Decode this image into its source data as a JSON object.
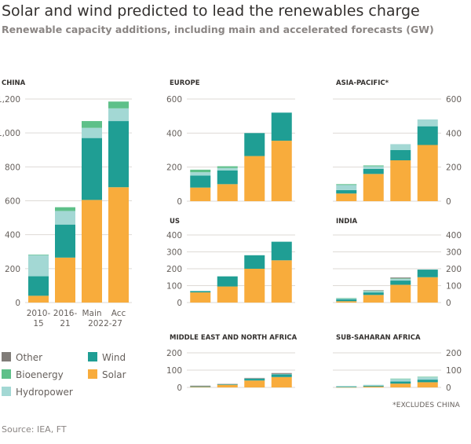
{
  "title": "Solar and wind predicted to lead the renewables charge",
  "subtitle": "Renewable capacity additions, including main and accelerated forecasts (GW)",
  "source": "Source: IEA, FT",
  "footnote": "*EXCLUDES CHINA",
  "colors": {
    "Solar": "#f8ac3c",
    "Wind": "#1f9e94",
    "Hydropower": "#a3d8d4",
    "Bioenergy": "#5ec089",
    "Other": "#807c78",
    "grid": "#dedad6",
    "axis": "#66605c"
  },
  "legend": [
    {
      "name": "Other",
      "color": "#807c78"
    },
    {
      "name": "Wind",
      "color": "#1f9e94"
    },
    {
      "name": "Bioenergy",
      "color": "#5ec089"
    },
    {
      "name": "Solar",
      "color": "#f8ac3c"
    },
    {
      "name": "Hydropower",
      "color": "#a3d8d4"
    }
  ],
  "chart_data": [
    {
      "type": "bar",
      "stacked": true,
      "title": "CHINA",
      "categories": [
        "2010-15",
        "2016-21",
        "Main",
        "Acc"
      ],
      "xlabels": [
        "2010-\n15",
        "2016-\n21",
        "Main",
        "Acc"
      ],
      "group_label": "2022-27",
      "ylim": [
        0,
        1200
      ],
      "yticks": [
        0,
        200,
        400,
        600,
        800,
        "1,000",
        "1,200"
      ],
      "yaxis_side": "left",
      "series": [
        {
          "name": "Solar",
          "values": [
            40,
            265,
            605,
            680
          ]
        },
        {
          "name": "Wind",
          "values": [
            115,
            195,
            365,
            390
          ]
        },
        {
          "name": "Hydropower",
          "values": [
            125,
            80,
            60,
            75
          ]
        },
        {
          "name": "Bioenergy",
          "values": [
            3,
            22,
            40,
            40
          ]
        },
        {
          "name": "Other",
          "values": [
            0,
            0,
            0,
            0
          ]
        }
      ]
    },
    {
      "type": "bar",
      "stacked": true,
      "title": "EUROPE",
      "categories": [
        "2010-15",
        "2016-21",
        "Main",
        "Acc"
      ],
      "ylim": [
        0,
        600
      ],
      "yticks": [
        0,
        200,
        400,
        600
      ],
      "yaxis_side": "left",
      "series": [
        {
          "name": "Solar",
          "values": [
            80,
            100,
            265,
            355
          ]
        },
        {
          "name": "Wind",
          "values": [
            70,
            80,
            135,
            165
          ]
        },
        {
          "name": "Hydropower",
          "values": [
            20,
            15,
            0,
            0
          ]
        },
        {
          "name": "Bioenergy",
          "values": [
            15,
            10,
            0,
            0
          ]
        },
        {
          "name": "Other",
          "values": [
            0,
            0,
            0,
            0
          ]
        }
      ]
    },
    {
      "type": "bar",
      "stacked": true,
      "title": "ASIA-PACIFIC*",
      "categories": [
        "2010-15",
        "2016-21",
        "Main",
        "Acc"
      ],
      "ylim": [
        0,
        600
      ],
      "yticks": [
        0,
        200,
        400,
        600
      ],
      "yaxis_side": "right",
      "series": [
        {
          "name": "Solar",
          "values": [
            45,
            160,
            240,
            330
          ]
        },
        {
          "name": "Wind",
          "values": [
            20,
            30,
            60,
            110
          ]
        },
        {
          "name": "Hydropower",
          "values": [
            30,
            15,
            35,
            40
          ]
        },
        {
          "name": "Bioenergy",
          "values": [
            5,
            5,
            0,
            0
          ]
        },
        {
          "name": "Other",
          "values": [
            0,
            0,
            0,
            0
          ]
        }
      ]
    },
    {
      "type": "bar",
      "stacked": true,
      "title": "US",
      "categories": [
        "2010-15",
        "2016-21",
        "Main",
        "Acc"
      ],
      "ylim": [
        0,
        400
      ],
      "yticks": [
        0,
        100,
        200,
        300,
        400
      ],
      "yaxis_side": "left",
      "series": [
        {
          "name": "Solar",
          "values": [
            60,
            95,
            200,
            250
          ]
        },
        {
          "name": "Wind",
          "values": [
            8,
            60,
            80,
            110
          ]
        },
        {
          "name": "Hydropower",
          "values": [
            0,
            0,
            0,
            0
          ]
        },
        {
          "name": "Bioenergy",
          "values": [
            0,
            0,
            0,
            0
          ]
        },
        {
          "name": "Other",
          "values": [
            0,
            0,
            0,
            0
          ]
        }
      ]
    },
    {
      "type": "bar",
      "stacked": true,
      "title": "INDIA",
      "categories": [
        "2010-15",
        "2016-21",
        "Main",
        "Acc"
      ],
      "ylim": [
        0,
        400
      ],
      "yticks": [
        0,
        100,
        200,
        300,
        400
      ],
      "yaxis_side": "right",
      "series": [
        {
          "name": "Solar",
          "values": [
            8,
            45,
            105,
            150
          ]
        },
        {
          "name": "Wind",
          "values": [
            12,
            15,
            25,
            45
          ]
        },
        {
          "name": "Hydropower",
          "values": [
            5,
            8,
            10,
            0
          ]
        },
        {
          "name": "Bioenergy",
          "values": [
            2,
            3,
            3,
            0
          ]
        },
        {
          "name": "Other",
          "values": [
            0,
            2,
            5,
            0
          ]
        }
      ]
    },
    {
      "type": "bar",
      "stacked": true,
      "title": "MIDDLE EAST AND NORTH AFRICA",
      "categories": [
        "2010-15",
        "2016-21",
        "Main",
        "Acc"
      ],
      "ylim": [
        0,
        200
      ],
      "yticks": [
        0,
        100,
        200
      ],
      "yaxis_side": "left",
      "series": [
        {
          "name": "Solar",
          "values": [
            3,
            15,
            40,
            60
          ]
        },
        {
          "name": "Wind",
          "values": [
            3,
            3,
            10,
            15
          ]
        },
        {
          "name": "Hydropower",
          "values": [
            0,
            0,
            2,
            3
          ]
        },
        {
          "name": "Bioenergy",
          "values": [
            0,
            0,
            0,
            0
          ]
        },
        {
          "name": "Other",
          "values": [
            4,
            2,
            3,
            5
          ]
        }
      ]
    },
    {
      "type": "bar",
      "stacked": true,
      "title": "SUB-SAHARAN AFRICA",
      "categories": [
        "2010-15",
        "2016-21",
        "Main",
        "Acc"
      ],
      "ylim": [
        0,
        200
      ],
      "yticks": [
        0,
        100,
        200
      ],
      "yaxis_side": "right",
      "series": [
        {
          "name": "Solar",
          "values": [
            1,
            5,
            22,
            30
          ]
        },
        {
          "name": "Wind",
          "values": [
            3,
            5,
            12,
            15
          ]
        },
        {
          "name": "Hydropower",
          "values": [
            5,
            5,
            15,
            15
          ]
        },
        {
          "name": "Bioenergy",
          "values": [
            0,
            0,
            2,
            2
          ]
        },
        {
          "name": "Other",
          "values": [
            0,
            0,
            0,
            0
          ]
        }
      ]
    }
  ]
}
